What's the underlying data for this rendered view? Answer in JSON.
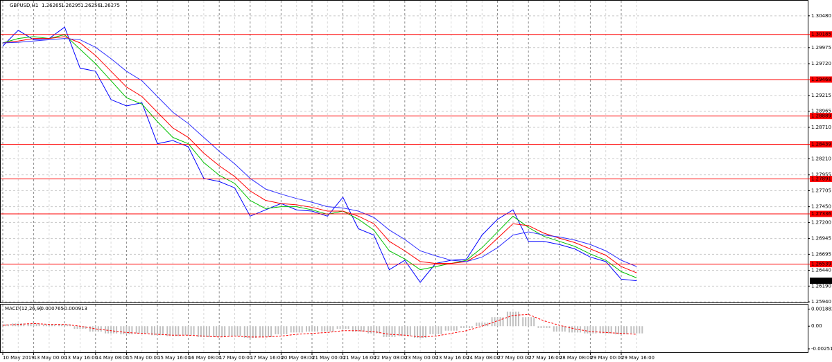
{
  "chart_data": [
    {
      "type": "line",
      "title": "GBPUSD,H1",
      "quote": [
        {
          "value": 1.26265,
          "label": "1.26265"
        },
        {
          "value": 1.26295,
          "label": "1.26295"
        },
        {
          "value": 1.26256,
          "label": "1.26256"
        },
        {
          "value": 1.26275,
          "label": "1.26275"
        }
      ],
      "categories": [
        "10 May 2019",
        null,
        "13 May 00:00",
        null,
        "13 May 16:00",
        null,
        "14 May 08:00",
        null,
        "15 May 00:00",
        null,
        "15 May 16:00",
        null,
        "16 May 08:00",
        null,
        "17 May 00:00",
        null,
        "17 May 16:00",
        null,
        "20 May 08:00",
        null,
        "21 May 00:00",
        null,
        "21 May 16:00",
        null,
        "22 May 08:00",
        null,
        "23 May 00:00",
        null,
        "23 May 16:00",
        null,
        "24 May 08:00",
        null,
        "27 May 00:00",
        null,
        "27 May 16:00",
        null,
        "28 May 08:00",
        null,
        "29 May 00:00",
        null,
        "29 May 16:00",
        null
      ],
      "series": [
        {
          "color": "#0000ff",
          "values": [
            1.3,
            1.3025,
            1.301,
            1.3012,
            1.303,
            1.2965,
            1.296,
            1.2915,
            1.2905,
            1.291,
            1.2845,
            1.285,
            1.284,
            1.279,
            1.2785,
            1.2775,
            1.273,
            1.274,
            1.275,
            1.274,
            1.2738,
            1.273,
            1.276,
            1.271,
            1.27,
            1.2645,
            1.266,
            1.2625,
            1.2655,
            1.266,
            1.2662,
            1.27,
            1.2725,
            1.274,
            1.269,
            1.269,
            1.2685,
            1.2678,
            1.2665,
            1.2658,
            1.263,
            1.26275
          ]
        },
        {
          "color": "#00c000",
          "values": [
            1.3005,
            1.3012,
            1.3015,
            1.3012,
            1.3018,
            1.2995,
            1.2972,
            1.2945,
            1.2918,
            1.2908,
            1.288,
            1.2855,
            1.2845,
            1.2815,
            1.2795,
            1.2782,
            1.2755,
            1.2742,
            1.2745,
            1.2745,
            1.274,
            1.2733,
            1.2738,
            1.2725,
            1.2708,
            1.2675,
            1.2662,
            1.2645,
            1.265,
            1.2655,
            1.266,
            1.268,
            1.2705,
            1.273,
            1.2712,
            1.2698,
            1.269,
            1.2682,
            1.267,
            1.266,
            1.2642,
            1.2632
          ]
        },
        {
          "color": "#ff0000",
          "values": [
            1.3005,
            1.3008,
            1.3012,
            1.3012,
            1.3015,
            1.3005,
            1.2985,
            1.296,
            1.2935,
            1.292,
            1.2895,
            1.287,
            1.2855,
            1.283,
            1.281,
            1.2793,
            1.277,
            1.2755,
            1.275,
            1.2748,
            1.2744,
            1.2738,
            1.2738,
            1.273,
            1.2718,
            1.269,
            1.2675,
            1.2658,
            1.2655,
            1.2655,
            1.2658,
            1.2672,
            1.2695,
            1.2718,
            1.2715,
            1.2703,
            1.2695,
            1.2688,
            1.2678,
            1.2668,
            1.265,
            1.264
          ]
        },
        {
          "color": "#3030ff",
          "values": [
            1.3005,
            1.3006,
            1.3008,
            1.301,
            1.3012,
            1.301,
            1.2998,
            1.298,
            1.296,
            1.2945,
            1.292,
            1.2895,
            1.2877,
            1.2855,
            1.2833,
            1.2813,
            1.279,
            1.2773,
            1.2765,
            1.2758,
            1.2752,
            1.2745,
            1.2743,
            1.2738,
            1.2728,
            1.2708,
            1.2693,
            1.2675,
            1.2667,
            1.266,
            1.2658,
            1.2665,
            1.268,
            1.27,
            1.2705,
            1.27,
            1.2697,
            1.2692,
            1.2685,
            1.2675,
            1.266,
            1.265
          ]
        }
      ],
      "ylim": [
        1.2593,
        1.3072
      ],
      "yticks": [
        {
          "value": 1.3048,
          "label": "1.30480"
        },
        {
          "value": 1.29975,
          "label": "1.29975"
        },
        {
          "value": 1.2972,
          "label": "1.29720"
        },
        {
          "value": 1.29215,
          "label": "1.29215"
        },
        {
          "value": 1.28965,
          "label": "1.28965"
        },
        {
          "value": 1.2871,
          "label": "1.28710"
        },
        {
          "value": 1.2821,
          "label": "1.28210"
        },
        {
          "value": 1.27955,
          "label": "1.27955"
        },
        {
          "value": 1.27705,
          "label": "1.27705"
        },
        {
          "value": 1.2745,
          "label": "1.27450"
        },
        {
          "value": 1.272,
          "label": "1.27200"
        },
        {
          "value": 1.26945,
          "label": "1.26945"
        },
        {
          "value": 1.26695,
          "label": "1.26695"
        },
        {
          "value": 1.2644,
          "label": "1.26440"
        },
        {
          "value": 1.2619,
          "label": "1.26190"
        },
        {
          "value": 1.2594,
          "label": "1.25940"
        }
      ],
      "levels": [
        {
          "value": 1.30185,
          "label": "1.30185"
        },
        {
          "value": 1.29468,
          "label": "1.29468"
        },
        {
          "value": 1.28889,
          "label": "1.28889"
        },
        {
          "value": 1.28439,
          "label": "1.28439"
        },
        {
          "value": 1.27891,
          "label": "1.27891"
        },
        {
          "value": 1.27336,
          "label": "1.27336"
        },
        {
          "value": 1.26539,
          "label": "1.26539"
        }
      ],
      "level_color": "#ff0000",
      "current": {
        "value": 1.26275,
        "label": "1.26275"
      },
      "grid": true
    },
    {
      "type": "bar",
      "title": "MACD(12,26,9)",
      "readings": [
        -0.000765,
        -0.000913
      ],
      "series": [
        {
          "color": "#c0c0c0",
          "values": [
            0.0002,
            0.0003,
            0.0003,
            0.0002,
            0.0002,
            -0.0003,
            -0.0006,
            -0.0008,
            -0.0009,
            -0.0008,
            -0.001,
            -0.0011,
            -0.001,
            -0.0012,
            -0.0012,
            -0.0011,
            -0.0013,
            -0.0012,
            -0.0009,
            -0.0007,
            -0.0006,
            -0.0006,
            -0.0003,
            -0.0006,
            -0.0008,
            -0.0012,
            -0.0011,
            -0.0013,
            -0.0009,
            -0.0005,
            -0.0002,
            0.0004,
            0.001,
            0.0016,
            0.001,
            -0.0002,
            -0.0006,
            -0.0007,
            -0.0008,
            -0.0008,
            -0.0009,
            -0.0008
          ]
        },
        {
          "color": "#ff0000",
          "values": [
            0.0001,
            0.0002,
            0.0003,
            0.0002,
            0.0002,
            0.0,
            -0.0003,
            -0.0005,
            -0.0007,
            -0.0008,
            -0.0009,
            -0.001,
            -0.001,
            -0.0011,
            -0.0012,
            -0.0011,
            -0.0012,
            -0.0012,
            -0.0011,
            -0.0009,
            -0.0008,
            -0.0007,
            -0.0005,
            -0.0005,
            -0.0006,
            -0.0009,
            -0.001,
            -0.0012,
            -0.0011,
            -0.0008,
            -0.0005,
            0.0,
            0.0006,
            0.0012,
            0.0013,
            0.0006,
            0.0001,
            -0.0003,
            -0.0006,
            -0.0007,
            -0.0008,
            -0.0009
          ]
        }
      ],
      "ylim": [
        -0.0029,
        0.0024
      ],
      "yticks": [
        0.001882,
        {
          "value": 0,
          "label": "0.00"
        },
        -0.002516
      ]
    }
  ]
}
